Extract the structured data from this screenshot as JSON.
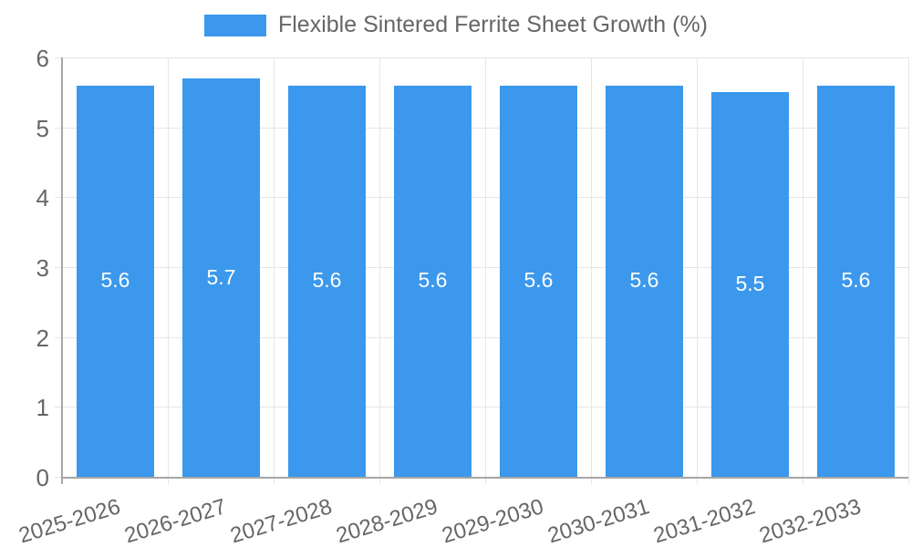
{
  "legend": {
    "label": "Flexible Sintered Ferrite Sheet Growth (%)"
  },
  "chart_data": {
    "type": "bar",
    "title": "Flexible Sintered Ferrite Sheet Growth (%)",
    "categories": [
      "2025-2026",
      "2026-2027",
      "2027-2028",
      "2028-2029",
      "2029-2030",
      "2030-2031",
      "2031-2032",
      "2032-2033"
    ],
    "values": [
      5.6,
      5.7,
      5.6,
      5.6,
      5.6,
      5.6,
      5.5,
      5.6
    ],
    "value_labels": [
      "5.6",
      "5.7",
      "5.6",
      "5.6",
      "5.6",
      "5.6",
      "5.5",
      "5.6"
    ],
    "xlabel": "",
    "ylabel": "",
    "ylim": [
      0,
      6
    ],
    "yticks": [
      0,
      1,
      2,
      3,
      4,
      5,
      6
    ],
    "grid": true,
    "legend_position": "top",
    "colors": {
      "bar": "#3b98ec",
      "value_label": "#ffffff",
      "tick_text": "#666666",
      "grid_line": "#e6e6e6",
      "axis_line": "#a6a6a6"
    }
  }
}
